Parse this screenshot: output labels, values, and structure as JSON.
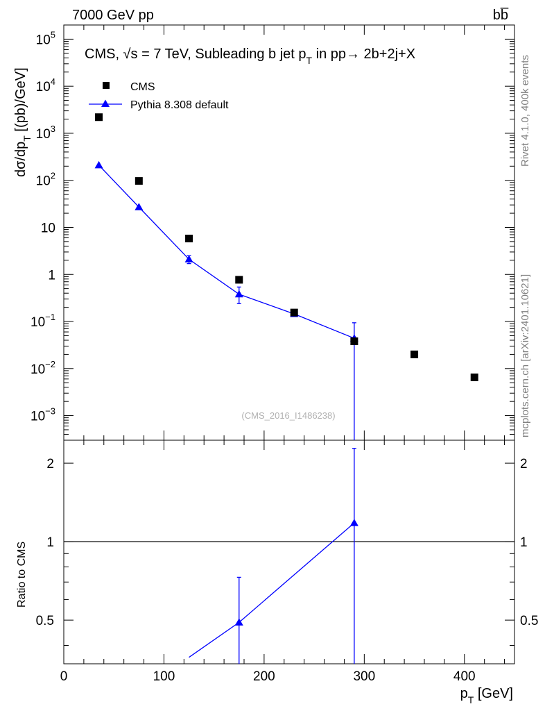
{
  "header": {
    "left": "7000 GeV pp",
    "right": "bb̅"
  },
  "side_labels": {
    "rivet": "Rivet 4.1.0,  400k events",
    "mcplots": "mcplots.cern.ch [arXiv:2401.10621]"
  },
  "colors": {
    "data": "#000000",
    "mc": "#0000ff",
    "side_text": "#808080",
    "analysis_tag": "#b0b0b0"
  },
  "chart_data": [
    {
      "type": "scatter",
      "panel": "main",
      "title": "CMS, √s = 7 TeV, Subleading b jet p",
      "title_sub": "T",
      "title_suffix": " in pp→  2b+2j+X",
      "ylabel": "dσ/dp",
      "ylabel_sub": "T",
      "ylabel_suffix": " [(pb)/GeV]",
      "xlim": [
        0,
        450
      ],
      "ylim": [
        0.0003,
        200000
      ],
      "yscale": "log",
      "analysis_tag": "(CMS_2016_I1486238)",
      "legend_position": "top-left",
      "y_ticks": [
        {
          "label": "10",
          "exp": "5"
        },
        {
          "label": "10",
          "exp": "4"
        },
        {
          "label": "10",
          "exp": "3"
        },
        {
          "label": "10",
          "exp": "2"
        },
        {
          "label": "10",
          "exp": ""
        },
        {
          "label": "1",
          "exp": ""
        },
        {
          "label": "10",
          "exp": "−1"
        },
        {
          "label": "10",
          "exp": "−2"
        },
        {
          "label": "10",
          "exp": "−3"
        }
      ],
      "series": [
        {
          "name": "CMS",
          "marker": "square",
          "x": [
            35,
            75,
            125,
            175,
            230,
            290,
            350,
            410
          ],
          "y": [
            2200,
            97,
            5.8,
            0.77,
            0.155,
            0.038,
            0.02,
            0.0065
          ]
        },
        {
          "name": "Pythia 8.308 default",
          "marker": "triangle",
          "line": true,
          "x": [
            35,
            75,
            125,
            175,
            230,
            290
          ],
          "y": [
            210,
            27,
            2.1,
            0.38,
            0.145,
            0.044
          ],
          "yerr_low": [
            0,
            0,
            0.4,
            0.14,
            0,
            0.044
          ],
          "yerr_high": [
            0,
            0,
            0.4,
            0.16,
            0,
            0.05
          ]
        }
      ]
    },
    {
      "type": "line",
      "panel": "ratio",
      "ylabel": "Ratio to CMS",
      "xlabel": "p",
      "xlabel_sub": "T",
      "xlabel_suffix": " [GeV]",
      "xlim": [
        0,
        450
      ],
      "ylim": [
        0.34,
        2.45
      ],
      "yscale": "log",
      "x_ticks": [
        "0",
        "100",
        "200",
        "300",
        "400"
      ],
      "y_ticks": [
        "0.5",
        "1",
        "2"
      ],
      "reference": 1,
      "series": [
        {
          "name": "Pythia 8.308 default",
          "x": [
            175,
            290
          ],
          "y": [
            0.49,
            1.18
          ],
          "yerr_low": [
            0.15,
            0.84
          ],
          "yerr_high": [
            0.24,
            1.1
          ],
          "line_from": {
            "x": 125,
            "y": 0.36
          }
        }
      ]
    }
  ]
}
